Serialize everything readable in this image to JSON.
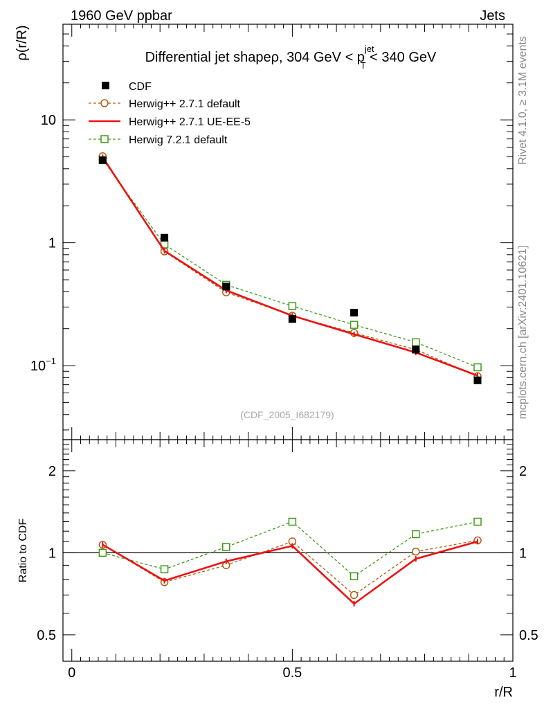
{
  "header": {
    "left": "1960 GeV ppbar",
    "right": "Jets"
  },
  "side_labels": {
    "rivet": "Rivet 4.1.0, ≥ 3.1M events",
    "mcplots": "mcplots.cern.ch [arXiv:2401.10621]"
  },
  "watermark": "(CDF_2005_I682179)",
  "colors": {
    "cdf": "#000000",
    "herwig_default": "#b05a10",
    "herwig_ueee5": "#ee1111",
    "herwig721": "#3c9a14"
  },
  "chart_data": [
    {
      "type": "line",
      "panel": "main",
      "title_parts": {
        "prefix": "Differential jet shapeρ, 304 GeV < p",
        "sup": "jet",
        "sub": "T",
        "suffix": " < 340 GeV"
      },
      "ylabel": "ρ(r/R)",
      "yscale": "log",
      "ylim": [
        0.025,
        60
      ],
      "xlim": [
        -0.02,
        1.0
      ],
      "yticks": [
        {
          "value": 10,
          "label": "10"
        },
        {
          "value": 1,
          "label": "1"
        },
        {
          "value": 0.1,
          "label_base": "10",
          "label_exp": "−1"
        }
      ],
      "x": [
        0.07,
        0.21,
        0.35,
        0.5,
        0.64,
        0.78,
        0.92
      ],
      "series": [
        {
          "key": "cdf",
          "name": "CDF",
          "style": "points",
          "values": [
            4.7,
            1.1,
            0.44,
            0.24,
            0.27,
            0.135,
            0.076
          ]
        },
        {
          "key": "herwig_default",
          "name": "Herwig++ 2.7.1 default",
          "style": "dashed-circle",
          "values": [
            5.05,
            0.85,
            0.395,
            0.255,
            0.185,
            0.135,
            0.082
          ]
        },
        {
          "key": "herwig_ueee5",
          "name": "Herwig++ 2.7.1 UE-EE-5",
          "style": "solid",
          "values": [
            4.95,
            0.86,
            0.41,
            0.255,
            0.18,
            0.128,
            0.083
          ]
        },
        {
          "key": "herwig721",
          "name": "Herwig 7.2.1 default",
          "style": "dashed-square",
          "values": [
            4.75,
            0.97,
            0.455,
            0.305,
            0.215,
            0.155,
            0.097
          ]
        }
      ]
    },
    {
      "type": "line",
      "panel": "ratio",
      "ylabel": "Ratio to CDF",
      "xlabel": "r/R",
      "ylim": [
        0.4,
        2.6
      ],
      "yticks": [
        {
          "value": 2,
          "label": "2"
        },
        {
          "value": 1,
          "label": "1"
        },
        {
          "value": 0.5,
          "label": "0.5"
        }
      ],
      "xticks": [
        {
          "value": 0,
          "label": "0"
        },
        {
          "value": 0.5,
          "label": "0.5"
        },
        {
          "value": 1,
          "label": "1"
        }
      ],
      "x": [
        0.07,
        0.21,
        0.35,
        0.5,
        0.64,
        0.78,
        0.92
      ],
      "series": [
        {
          "key": "herwig_default",
          "name": "Herwig++ 2.7.1 default",
          "style": "dashed-circle",
          "values": [
            1.07,
            0.78,
            0.9,
            1.1,
            0.7,
            1.01,
            1.11
          ]
        },
        {
          "key": "herwig_ueee5",
          "name": "Herwig++ 2.7.1 UE-EE-5",
          "style": "solid",
          "values": [
            1.07,
            0.79,
            0.93,
            1.06,
            0.65,
            0.95,
            1.1
          ]
        },
        {
          "key": "herwig721",
          "name": "Herwig 7.2.1 default",
          "style": "dashed-square",
          "values": [
            1.0,
            0.87,
            1.05,
            1.3,
            0.82,
            1.17,
            1.3
          ]
        }
      ]
    }
  ]
}
